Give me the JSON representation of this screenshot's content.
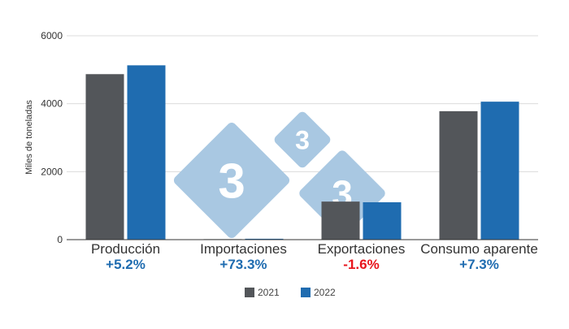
{
  "chart_data": {
    "type": "bar",
    "title": "",
    "xlabel": "",
    "ylabel": "Miles de toneladas",
    "ylim": [
      0,
      6000
    ],
    "yticks": [
      0,
      2000,
      4000,
      6000
    ],
    "grid": true,
    "legend_position": "bottom-center",
    "categories": [
      "Producción",
      "Importaciones",
      "Exportaciones",
      "Consumo aparente"
    ],
    "series": [
      {
        "name": "2021",
        "color": "#53565a",
        "values": [
          4870,
          15,
          1120,
          3780
        ]
      },
      {
        "name": "2022",
        "color": "#1f6cb0",
        "values": [
          5130,
          26,
          1100,
          4060
        ]
      }
    ],
    "changes": [
      {
        "label": "+5.2%",
        "color": "#1f6cb0"
      },
      {
        "label": "+73.3%",
        "color": "#1f6cb0"
      },
      {
        "label": "-1.6%",
        "color": "#e8141c"
      },
      {
        "label": "+7.3%",
        "color": "#1f6cb0"
      }
    ]
  },
  "watermark": {
    "glyph": "3",
    "color": "#a9c8e2"
  }
}
